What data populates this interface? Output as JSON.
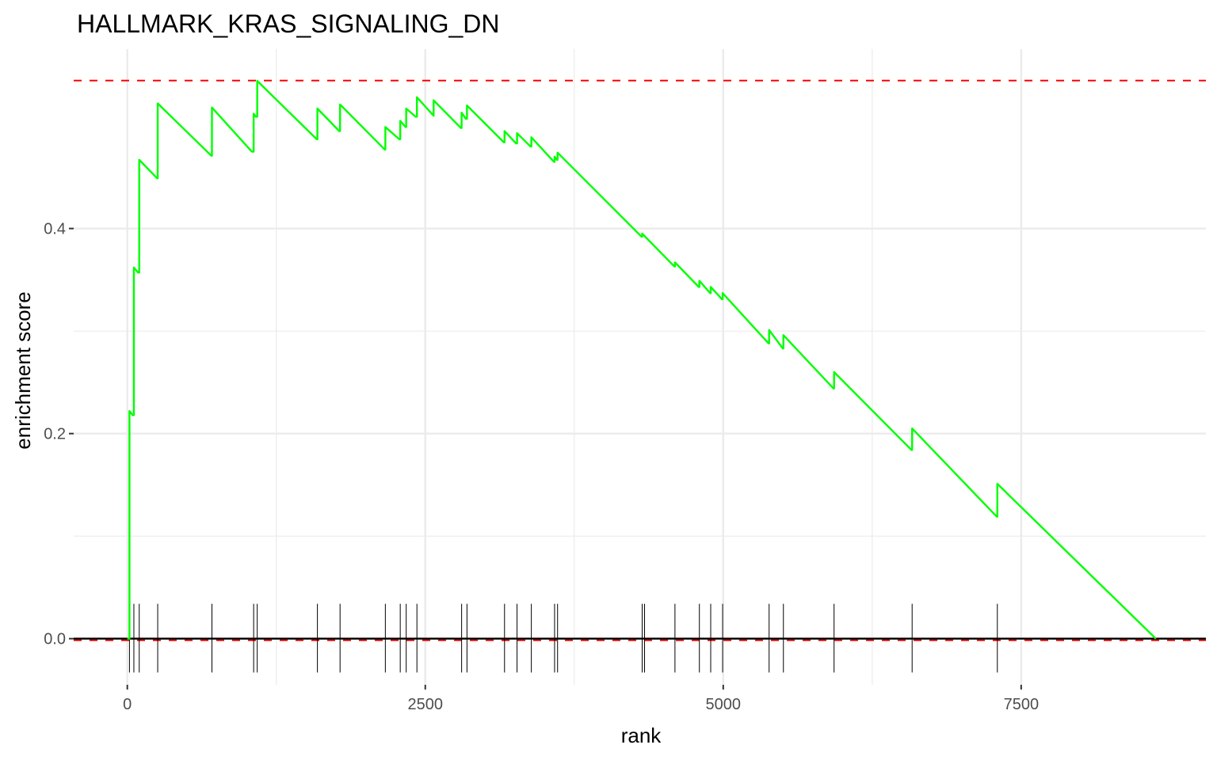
{
  "chart_data": {
    "type": "line",
    "title": "HALLMARK_KRAS_SIGNALING_DN",
    "xlabel": "rank",
    "ylabel": "enrichment score",
    "xlim": [
      -450,
      9050
    ],
    "ylim": [
      -0.045,
      0.575
    ],
    "x_ticks": [
      0,
      2500,
      5000,
      7500
    ],
    "x_tick_labels": [
      "0",
      "2500",
      "5000",
      "7500"
    ],
    "y_ticks": [
      0.0,
      0.2,
      0.4
    ],
    "y_tick_labels": [
      "0.0",
      "0.2",
      "0.4"
    ],
    "grid": true,
    "colors": {
      "curve": "#00ff00",
      "reference_dashes": "#ff0000",
      "zero_line": "#000000",
      "hit_ticks": "#000000",
      "grid": "#ebebeb"
    },
    "reference_lines": [
      {
        "y": 0.5443,
        "style": "dashed",
        "color": "#ff0000"
      },
      {
        "y": -0.0016,
        "style": "dashed",
        "color": "#ff0000"
      },
      {
        "y": 0.0,
        "style": "solid",
        "color": "#000000"
      }
    ],
    "hit_ranks": [
      18,
      55,
      100,
      255,
      710,
      1060,
      1090,
      1595,
      1785,
      2165,
      2290,
      2340,
      2430,
      2805,
      2850,
      3165,
      3270,
      3390,
      3585,
      3610,
      4320,
      4340,
      4595,
      4800,
      4895,
      4995,
      5385,
      5505,
      5930,
      6585,
      7300
    ],
    "series": [
      {
        "x": [
          0,
          18,
          18,
          45,
          55,
          55,
          90,
          100,
          100,
          250,
          255,
          255,
          705,
          710,
          710,
          1045,
          1060,
          1060,
          1078,
          1090,
          1090,
          1590,
          1595,
          1595,
          1778,
          1785,
          1785,
          2160,
          2165,
          2165,
          2283,
          2290,
          2290,
          2335,
          2340,
          2340,
          2420,
          2430,
          2430,
          2570,
          2570,
          2800,
          2805,
          2805,
          2840,
          2850,
          2850,
          3160,
          3165,
          3165,
          3262,
          3270,
          3270,
          3383,
          3390,
          3390,
          3580,
          3585,
          3585,
          3605,
          3610,
          3610,
          4315,
          4320,
          4320,
          4590,
          4595,
          4595,
          4795,
          4800,
          4800,
          4890,
          4895,
          4895,
          4990,
          4995,
          4995,
          5380,
          5385,
          5385,
          5500,
          5505,
          5505,
          5925,
          5930,
          5930,
          6580,
          6585,
          6585,
          7295,
          7300,
          7300,
          8630
        ],
        "y": [
          0.0,
          0.0,
          0.222,
          0.218,
          0.218,
          0.362,
          0.357,
          0.357,
          0.467,
          0.449,
          0.449,
          0.522,
          0.471,
          0.471,
          0.518,
          0.475,
          0.475,
          0.512,
          0.509,
          0.509,
          0.544,
          0.487,
          0.487,
          0.517,
          0.495,
          0.495,
          0.521,
          0.477,
          0.477,
          0.499,
          0.487,
          0.487,
          0.505,
          0.499,
          0.499,
          0.517,
          0.509,
          0.509,
          0.528,
          0.51,
          0.525,
          0.498,
          0.498,
          0.513,
          0.507,
          0.507,
          0.52,
          0.484,
          0.484,
          0.495,
          0.483,
          0.483,
          0.493,
          0.48,
          0.48,
          0.489,
          0.465,
          0.465,
          0.47,
          0.467,
          0.467,
          0.474,
          0.392,
          0.392,
          0.395,
          0.363,
          0.363,
          0.367,
          0.343,
          0.343,
          0.349,
          0.337,
          0.337,
          0.343,
          0.331,
          0.331,
          0.337,
          0.288,
          0.288,
          0.301,
          0.283,
          0.283,
          0.296,
          0.244,
          0.244,
          0.26,
          0.184,
          0.184,
          0.205,
          0.119,
          0.119,
          0.151,
          0.0
        ]
      }
    ]
  }
}
